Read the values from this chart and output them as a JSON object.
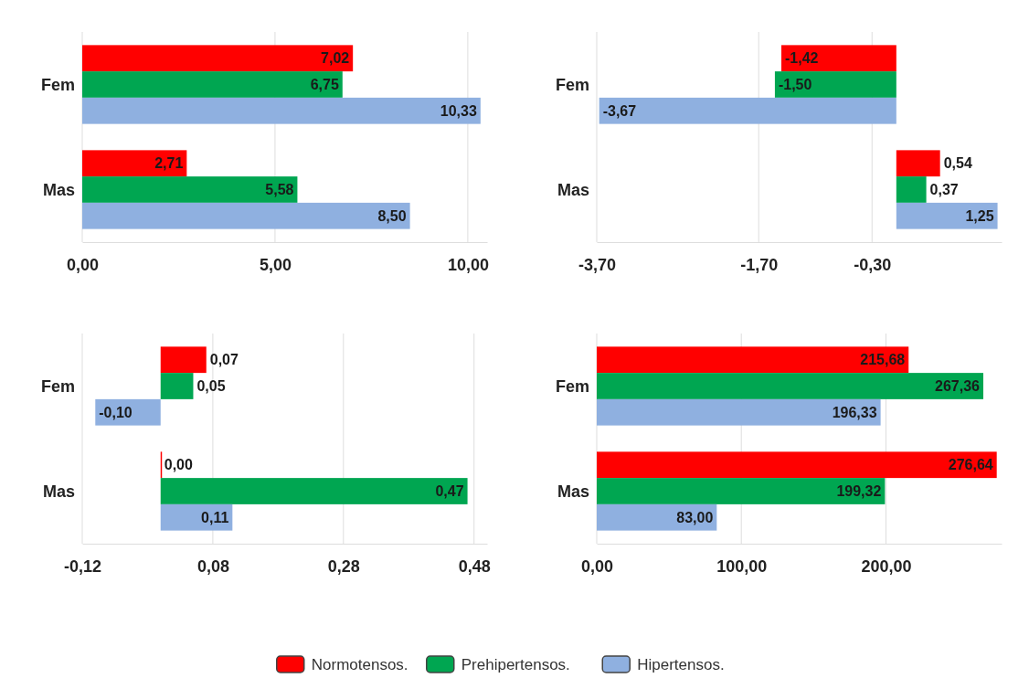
{
  "chart_data": [
    {
      "type": "bar",
      "orientation": "horizontal",
      "categories": [
        "Fem",
        "Mas"
      ],
      "legend": "bottom",
      "grid": "x",
      "xlim": [
        0,
        10.5
      ],
      "xticks": [
        {
          "value": 0,
          "label": "0,00"
        },
        {
          "value": 5,
          "label": "5,00"
        },
        {
          "value": 10,
          "label": "10,00"
        }
      ],
      "series": [
        {
          "name": "Normotensos.",
          "color": "#ff0000",
          "values": [
            7.02,
            2.71
          ],
          "value_labels": [
            "7,02",
            "2,71"
          ]
        },
        {
          "name": "Prehipertensos.",
          "color": "#00a651",
          "values": [
            6.75,
            5.58
          ],
          "value_labels": [
            "6,75",
            "5,58"
          ]
        },
        {
          "name": "Hipertensos.",
          "color": "#8fb0e0",
          "values": [
            10.33,
            8.5
          ],
          "value_labels": [
            "10,33",
            "8,50"
          ]
        }
      ]
    },
    {
      "type": "bar",
      "orientation": "horizontal",
      "categories": [
        "Fem",
        "Mas"
      ],
      "grid": "x",
      "xlim": [
        -3.7,
        1.3
      ],
      "xticks": [
        {
          "value": -3.7,
          "label": "-3,70"
        },
        {
          "value": -1.7,
          "label": "-1,70"
        },
        {
          "value": -0.3,
          "label": "-0,30"
        }
      ],
      "series": [
        {
          "color": "#ff0000",
          "values": [
            -1.42,
            0.54
          ],
          "value_labels": [
            "-1,42",
            "0,54"
          ]
        },
        {
          "color": "#00a651",
          "values": [
            -1.5,
            0.37
          ],
          "value_labels": [
            "-1,50",
            "0,37"
          ]
        },
        {
          "color": "#8fb0e0",
          "values": [
            -3.67,
            1.25
          ],
          "value_labels": [
            "-3,67",
            "1,25"
          ]
        }
      ]
    },
    {
      "type": "bar",
      "orientation": "horizontal",
      "categories": [
        "Fem",
        "Mas"
      ],
      "grid": "x",
      "xlim": [
        -0.12,
        0.5
      ],
      "xticks": [
        {
          "value": -0.12,
          "label": "-0,12"
        },
        {
          "value": 0.08,
          "label": "0,08"
        },
        {
          "value": 0.28,
          "label": "0,28"
        },
        {
          "value": 0.48,
          "label": "0,48"
        }
      ],
      "series": [
        {
          "color": "#ff0000",
          "values": [
            0.07,
            0.0
          ],
          "value_labels": [
            "0,07",
            "0,00"
          ]
        },
        {
          "color": "#00a651",
          "values": [
            0.05,
            0.47
          ],
          "value_labels": [
            "0,05",
            "0,47"
          ]
        },
        {
          "color": "#8fb0e0",
          "values": [
            -0.1,
            0.11
          ],
          "value_labels": [
            "-0,10",
            "0,11"
          ]
        }
      ]
    },
    {
      "type": "bar",
      "orientation": "horizontal",
      "categories": [
        "Fem",
        "Mas"
      ],
      "grid": "x",
      "xlim": [
        0,
        280
      ],
      "xticks": [
        {
          "value": 0,
          "label": "0,00"
        },
        {
          "value": 100,
          "label": "100,00"
        },
        {
          "value": 200,
          "label": "200,00"
        }
      ],
      "series": [
        {
          "color": "#ff0000",
          "values": [
            215.68,
            276.64
          ],
          "value_labels": [
            "215,68",
            "276,64"
          ]
        },
        {
          "color": "#00a651",
          "values": [
            267.36,
            199.32
          ],
          "value_labels": [
            "267,36",
            "199,32"
          ]
        },
        {
          "color": "#8fb0e0",
          "values": [
            196.33,
            83.0
          ],
          "value_labels": [
            "196,33",
            "83,00"
          ]
        }
      ]
    }
  ]
}
